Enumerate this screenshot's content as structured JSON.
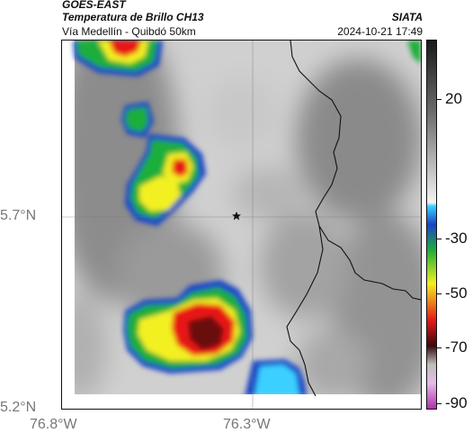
{
  "header": {
    "source": "GOES-EAST",
    "product": "Temperatura de Brillo CH13",
    "region": "Vía Medellín - Quibdó 50km",
    "organization": "SIATA",
    "datetime": "2024-10-21 17:49"
  },
  "map": {
    "lat_labels": [
      "5.7°N",
      "5.2°N"
    ],
    "lon_labels": [
      "76.8°W",
      "76.3°W"
    ],
    "marker": "star-icon",
    "gridlines": true,
    "borders": "department boundaries"
  },
  "colorbar": {
    "ticks": [
      "20",
      "-30",
      "-50",
      "-70",
      "-90"
    ],
    "scale": "grayscale above -20, color below (blue, green, yellow, red, dark red, magenta)",
    "colors": {
      "warm_gray": "#a0a0a0",
      "cyan": "#3ad0ff",
      "blue": "#1a44c8",
      "green": "#1fae3a",
      "yellow": "#f3f020",
      "red": "#e81818",
      "dark_red": "#3a0a0a",
      "magenta": "#c040c0"
    }
  }
}
